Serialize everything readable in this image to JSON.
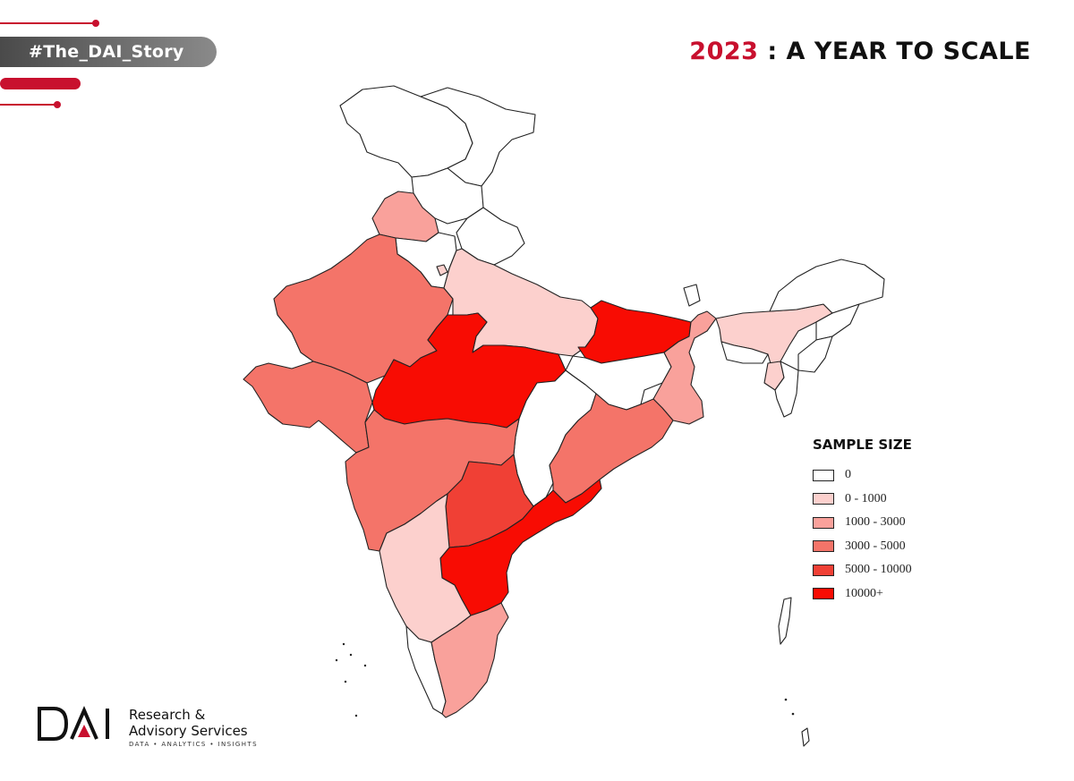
{
  "header": {
    "hashtag": "#The_DAI_Story",
    "title_year": "2023",
    "title_rest": " : A YEAR TO SCALE"
  },
  "colors": {
    "brand_red": "#c8102e",
    "class_0": "#ffffff",
    "class_1": "#fcd0cd",
    "class_2": "#f9a19b",
    "class_3": "#f47469",
    "class_4": "#f04035",
    "class_5": "#f80c03"
  },
  "legend": {
    "title": "SAMPLE SIZE",
    "items": [
      {
        "label": "0",
        "color": "#ffffff"
      },
      {
        "label": "0 - 1000",
        "color": "#fcd0cd"
      },
      {
        "label": "1000 - 3000",
        "color": "#f9a19b"
      },
      {
        "label": "3000 - 5000",
        "color": "#f47469"
      },
      {
        "label": "5000 - 10000",
        "color": "#f04035"
      },
      {
        "label": "10000+",
        "color": "#f80c03"
      }
    ]
  },
  "map": {
    "regions_by_class": {
      "0": [
        "jammu-kashmir",
        "ladakh",
        "himachal",
        "uttarakhand",
        "haryana",
        "chhattisgarh",
        "jharkhand",
        "kerala",
        "arunachal",
        "sikkim",
        "meghalaya",
        "manipur",
        "nagaland",
        "mizoram",
        "islands"
      ],
      "1": [
        "uttar-pradesh",
        "karnataka",
        "assam",
        "delhi",
        "tripura"
      ],
      "2": [
        "punjab",
        "west-bengal",
        "tamil-nadu"
      ],
      "3": [
        "rajasthan",
        "gujarat",
        "maharashtra",
        "odisha"
      ],
      "4": [
        "telangana"
      ],
      "5": [
        "madhya-pradesh",
        "bihar",
        "andhra-pradesh"
      ]
    }
  },
  "logo": {
    "mark": "DAI",
    "name_line1": "Research &",
    "name_line2": "Advisory Services",
    "tagline": "DATA • ANALYTICS • INSIGHTS"
  }
}
